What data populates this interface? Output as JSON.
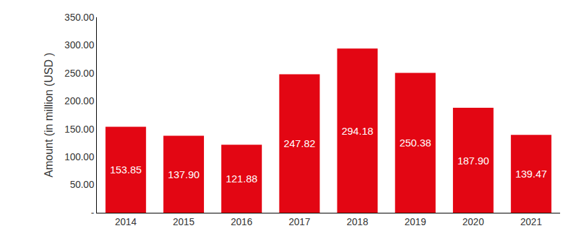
{
  "chart_data": {
    "type": "bar",
    "y_label": "Amount (in million (USD )",
    "categories": [
      "2014",
      "2015",
      "2016",
      "2017",
      "2018",
      "2019",
      "2020",
      "2021"
    ],
    "values": [
      153.85,
      137.9,
      121.88,
      247.82,
      294.18,
      250.38,
      187.9,
      139.47
    ],
    "value_labels": [
      "153.85",
      "137.90",
      "121.88",
      "247.82",
      "294.18",
      "250.38",
      "187.90",
      "139.47"
    ],
    "color": "#e30613",
    "ylim": [
      0,
      350
    ],
    "yticks": [
      {
        "value": 0,
        "label": "-"
      },
      {
        "value": 50,
        "label": "50.00"
      },
      {
        "value": 100,
        "label": "100.00"
      },
      {
        "value": 150,
        "label": "150.00"
      },
      {
        "value": 200,
        "label": "200.00"
      },
      {
        "value": 250,
        "label": "250.00"
      },
      {
        "value": 300,
        "label": "300.00"
      },
      {
        "value": 350,
        "label": "350.00"
      }
    ],
    "grid": false,
    "data_labels": true
  }
}
